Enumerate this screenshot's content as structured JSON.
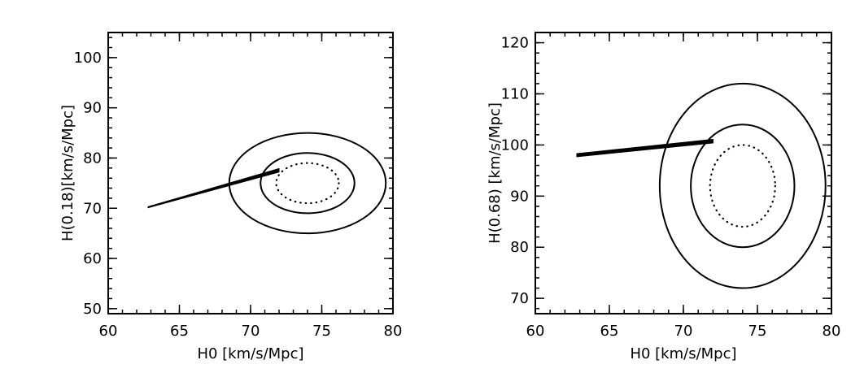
{
  "chart_data": [
    {
      "type": "contour",
      "panel": "left",
      "xlabel": "H0 [km/s/Mpc]",
      "ylabel": "H(0.18)[km/s/Mpc]",
      "xlim": [
        60,
        80
      ],
      "ylim": [
        49,
        105
      ],
      "xticks": [
        60,
        65,
        70,
        75,
        80
      ],
      "yticks": [
        50,
        60,
        70,
        80,
        90,
        100
      ],
      "x_minor_step": 1,
      "y_minor_step": 2,
      "grid": false,
      "ellipses": [
        {
          "name": "",
          "center": [
            74,
            75
          ],
          "semi_axes": [
            2.2,
            4
          ],
          "style": "dotted"
        },
        {
          "name": "",
          "center": [
            74,
            75
          ],
          "semi_axes": [
            3.3,
            6
          ],
          "style": "solid"
        },
        {
          "name": "",
          "center": [
            74,
            75
          ],
          "semi_axes": [
            5.5,
            10
          ],
          "style": "solid"
        }
      ],
      "band": {
        "x": [
          62.8,
          72
        ],
        "y_lower": [
          70.1,
          77.2
        ],
        "y_upper": [
          70.3,
          77.9
        ]
      }
    },
    {
      "type": "contour",
      "panel": "right",
      "xlabel": "H0 [km/s/Mpc]",
      "ylabel": "H(0.68) [km/s/Mpc]",
      "xlim": [
        60,
        80
      ],
      "ylim": [
        67,
        122
      ],
      "xticks": [
        60,
        65,
        70,
        75,
        80
      ],
      "yticks": [
        70,
        80,
        90,
        100,
        110,
        120
      ],
      "x_minor_step": 1,
      "y_minor_step": 2,
      "grid": false,
      "ellipses": [
        {
          "name": "",
          "center": [
            74,
            92
          ],
          "semi_axes": [
            2.2,
            8
          ],
          "style": "dotted"
        },
        {
          "name": "",
          "center": [
            74,
            92
          ],
          "semi_axes": [
            3.5,
            12
          ],
          "style": "solid"
        },
        {
          "name": "",
          "center": [
            74,
            92
          ],
          "semi_axes": [
            5.6,
            20
          ],
          "style": "solid"
        }
      ],
      "band": {
        "x": [
          62.8,
          72
        ],
        "y_lower": [
          97.7,
          100.4
        ],
        "y_upper": [
          98.3,
          101.1
        ]
      }
    }
  ]
}
